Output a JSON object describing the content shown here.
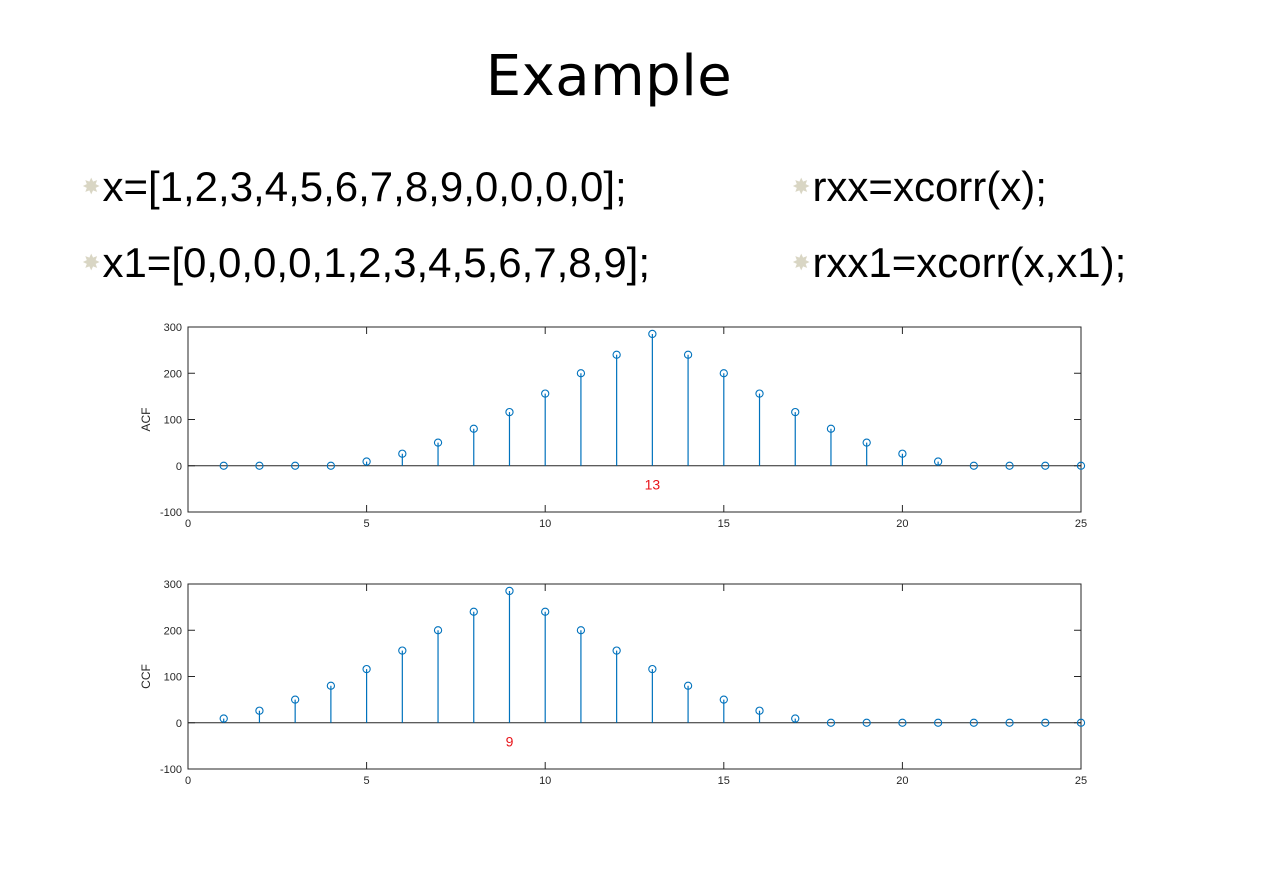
{
  "slide": {
    "title": "Example",
    "bullets": [
      {
        "text": "x=[1,2,3,4,5,6,7,8,9,0,0,0,0];"
      },
      {
        "text": "x1=[0,0,0,0,1,2,3,4,5,6,7,8,9];"
      },
      {
        "text": "rxx=xcorr(x);"
      },
      {
        "text": "rxx1=xcorr(x,x1);"
      }
    ],
    "bullet_icon": "star-bullet-icon"
  },
  "colors": {
    "stem": "#0072bd",
    "annotation": "#e8141a",
    "axes": "#262626"
  },
  "chart_data": [
    {
      "type": "stem",
      "title": "",
      "xlabel": "",
      "ylabel": "ACF",
      "xlim": [
        0,
        25
      ],
      "ylim": [
        -100,
        300
      ],
      "xticks": [
        0,
        5,
        10,
        15,
        20,
        25
      ],
      "yticks": [
        -100,
        0,
        100,
        200,
        300
      ],
      "grid": false,
      "x": [
        1,
        2,
        3,
        4,
        5,
        6,
        7,
        8,
        9,
        10,
        11,
        12,
        13,
        14,
        15,
        16,
        17,
        18,
        19,
        20,
        21,
        22,
        23,
        24,
        25
      ],
      "values": [
        0,
        0,
        0,
        0,
        9,
        26,
        50,
        80,
        116,
        156,
        200,
        240,
        285,
        240,
        200,
        156,
        116,
        80,
        50,
        26,
        9,
        0,
        0,
        0,
        0
      ],
      "annotation": {
        "text": "13",
        "x": 13,
        "y": -40
      }
    },
    {
      "type": "stem",
      "title": "",
      "xlabel": "",
      "ylabel": "CCF",
      "xlim": [
        0,
        25
      ],
      "ylim": [
        -100,
        300
      ],
      "xticks": [
        0,
        5,
        10,
        15,
        20,
        25
      ],
      "yticks": [
        -100,
        0,
        100,
        200,
        300
      ],
      "grid": false,
      "x": [
        1,
        2,
        3,
        4,
        5,
        6,
        7,
        8,
        9,
        10,
        11,
        12,
        13,
        14,
        15,
        16,
        17,
        18,
        19,
        20,
        21,
        22,
        23,
        24,
        25
      ],
      "values": [
        9,
        26,
        50,
        80,
        116,
        156,
        200,
        240,
        285,
        240,
        200,
        156,
        116,
        80,
        50,
        26,
        9,
        0,
        0,
        0,
        0,
        0,
        0,
        0,
        0
      ],
      "annotation": {
        "text": "9",
        "x": 9,
        "y": -40
      }
    }
  ]
}
